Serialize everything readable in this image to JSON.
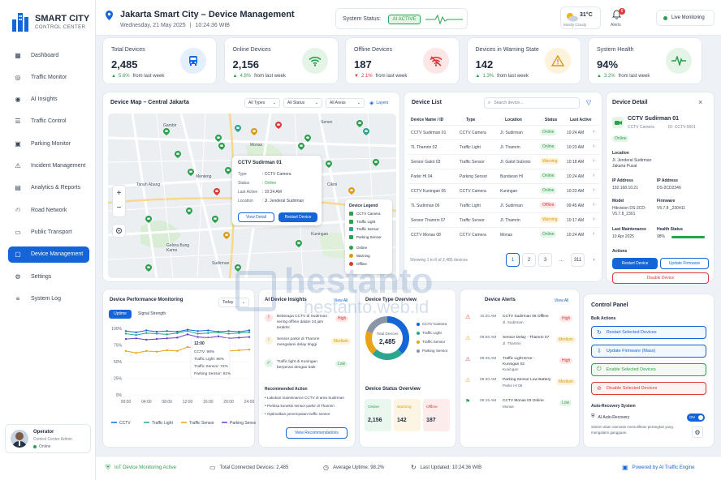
{
  "brand": {
    "title": "SMART CITY",
    "subtitle": "CONTROL CENTER"
  },
  "sidebar": {
    "items": [
      {
        "label": "Dashboard",
        "icon": "grid-icon"
      },
      {
        "label": "Traffic Monitor",
        "icon": "traffic-icon"
      },
      {
        "label": "AI Insights",
        "icon": "ai-icon"
      },
      {
        "label": "Traffic Control",
        "icon": "sliders-icon"
      },
      {
        "label": "Parking Monitor",
        "icon": "parking-icon"
      },
      {
        "label": "Incident Management",
        "icon": "alert-icon"
      },
      {
        "label": "Analytics & Reports",
        "icon": "chart-icon"
      },
      {
        "label": "Road Network",
        "icon": "road-icon"
      },
      {
        "label": "Public Transport",
        "icon": "bus-icon"
      },
      {
        "label": "Device Management",
        "icon": "device-icon"
      },
      {
        "label": "Settings",
        "icon": "gear-icon"
      },
      {
        "label": "System Log",
        "icon": "log-icon"
      }
    ],
    "active_index": 9,
    "user": {
      "name": "Operator",
      "role": "Control Center Admin",
      "status": "Online"
    }
  },
  "header": {
    "title": "Jakarta Smart City – Device Management",
    "date": "Wednesday, 21 May 2025",
    "time": "10:24:36 WIB",
    "system_status_label": "System Status:",
    "system_status_value": "AI ACTIVE",
    "weather_temp": "31°C",
    "weather_desc": "Mostly Cloudy",
    "alerts_label": "Alerts",
    "alerts_count": "8",
    "live_label": "Live Monitoring"
  },
  "kpis": [
    {
      "label": "Total Devices",
      "value": "2,485",
      "change": "5.6%",
      "trend": "up",
      "suffix": "from last week",
      "icon": "bus-icon",
      "color": "#1565d8",
      "bg": "#e4eefc"
    },
    {
      "label": "Online Devices",
      "value": "2,156",
      "change": "4.8%",
      "trend": "up",
      "suffix": "from last week",
      "icon": "wifi-icon",
      "color": "#2e9e4f",
      "bg": "#e4f5e8"
    },
    {
      "label": "Offline Devices",
      "value": "187",
      "change": "2.1%",
      "trend": "down",
      "suffix": "from last week",
      "icon": "wifi-off-icon",
      "color": "#d93a3a",
      "bg": "#fde6e6"
    },
    {
      "label": "Devices in Warning State",
      "value": "142",
      "change": "1.3%",
      "trend": "up",
      "suffix": "from last week",
      "icon": "warning-icon",
      "color": "#d99a1a",
      "bg": "#fdf2dc"
    },
    {
      "label": "System Health",
      "value": "94%",
      "change": "3.2%",
      "trend": "up",
      "suffix": "from last week",
      "icon": "pulse-icon",
      "color": "#2e9e4f",
      "bg": "#e4f5e8"
    }
  ],
  "map": {
    "title": "Device Map – Central Jakarta",
    "filters": [
      "All Types",
      "All Status",
      "All Areas"
    ],
    "layers_label": "Layers",
    "labels": [
      "Gambir",
      "Senen",
      "Monas",
      "Tanah Abang",
      "Menteng",
      "Cikini",
      "Gelora Bung Karno",
      "Sudirman",
      "Kuningan"
    ],
    "popup": {
      "title": "CCTV Sudirman 01",
      "rows": [
        [
          "Type",
          ": CCTV Camera"
        ],
        [
          "Status",
          ": Online"
        ],
        [
          "Last Active",
          ": 10:24 AM"
        ],
        [
          "Location",
          ": Jl. Jenderal Sudirman"
        ]
      ],
      "view_label": "View Detail",
      "restart_label": "Restart Device"
    },
    "legend": {
      "title": "Device Legend",
      "types": [
        "CCTV Camera",
        "Traffic Light",
        "Traffic Sensor",
        "Parking Sensor"
      ],
      "statuses": [
        "Online",
        "Warning",
        "Offline"
      ]
    }
  },
  "device_list": {
    "title": "Device List",
    "search_placeholder": "Search device...",
    "columns": [
      "Device Name / ID",
      "Type",
      "Location",
      "Status",
      "Last Active"
    ],
    "rows": [
      [
        "CCTV Sudirman 01",
        "CCTV Camera",
        "Jl. Sudirman",
        "Online",
        "10:24 AM"
      ],
      [
        "TL Thamrin 02",
        "Traffic Light",
        "Jl. Thamrin",
        "Online",
        "10:23 AM"
      ],
      [
        "Sensor Gatot 03",
        "Traffic Sensor",
        "Jl. Gatot Subroto",
        "Warning",
        "10:18 AM"
      ],
      [
        "Parkir HI 04",
        "Parking Sensor",
        "Bundaran HI",
        "Online",
        "10:24 AM"
      ],
      [
        "CCTV Kuningan 05",
        "CCTV Camera",
        "Kuningan",
        "Online",
        "10:23 AM"
      ],
      [
        "TL Sudirman 06",
        "Traffic Light",
        "Jl. Sudirman",
        "Offline",
        "09:45 AM"
      ],
      [
        "Sensor Thamrin 07",
        "Traffic Sensor",
        "Jl. Thamrin",
        "Warning",
        "10:17 AM"
      ],
      [
        "CCTV Monas 08",
        "CCTV Camera",
        "Monas",
        "Online",
        "10:24 AM"
      ]
    ],
    "footer": "Showing 1 to 8 of 2,485 devices",
    "pages": [
      "1",
      "2",
      "3",
      "...",
      "311"
    ]
  },
  "device_detail": {
    "title": "Device Detail",
    "name": "CCTV Sudirman 01",
    "type": "CCTV Camera",
    "id": "ID: CCTV-0001",
    "status": "Online",
    "location_label": "Location",
    "location": "Jl. Jenderal Sudirman Jakarta Pusat",
    "ip_label": "IP Address",
    "ip": "192.168.10.21",
    "mac_label": "IP Address",
    "mac": "DS-2CD2346",
    "model_label": "Model",
    "model": "Hikvision DS-2CD-V5.7.8_2301",
    "fw_label": "Firmware",
    "fw": "V5.7.8 _230411",
    "maint_label": "Last Maintenance",
    "maint": "10 Apr 2025",
    "health_label": "Health Status",
    "health": "98%",
    "health_pct": 98,
    "actions_label": "Actions",
    "restart": "Restart Device",
    "update": "Update Firmware",
    "disable": "Disable Device"
  },
  "perf": {
    "title": "Device Performance Monitoring",
    "range": "Today",
    "tabs": [
      "Uptime",
      "Signal Strength"
    ],
    "tooltip": {
      "time": "12:00",
      "lines": [
        "CCTV: 98%",
        "Traffic Light: 96%",
        "Traffic Sensor: 72%",
        "Parking Sensor: 91%"
      ]
    }
  },
  "chart_data": {
    "type": "line",
    "x": [
      "00:00",
      "02:00",
      "04:00",
      "06:00",
      "08:00",
      "10:00",
      "12:00",
      "14:00",
      "16:00",
      "18:00",
      "20:00",
      "22:00",
      "24:00"
    ],
    "yticks": [
      "0%",
      "25%",
      "50%",
      "75%",
      "100%"
    ],
    "ylim": [
      0,
      100
    ],
    "series": [
      {
        "name": "CCTV",
        "color": "#1565d8",
        "values": [
          96,
          94,
          97,
          95,
          96,
          95,
          98,
          96,
          97,
          95,
          96,
          95,
          97
        ]
      },
      {
        "name": "Traffic Light",
        "color": "#2ba58f",
        "values": [
          92,
          90,
          93,
          92,
          91,
          93,
          96,
          92,
          93,
          94,
          92,
          93,
          94
        ]
      },
      {
        "name": "Traffic Sensor",
        "color": "#e8a317",
        "values": [
          66,
          63,
          66,
          65,
          67,
          66,
          72,
          70,
          67,
          69,
          66,
          67,
          68
        ]
      },
      {
        "name": "Parking Sensor",
        "color": "#6a3fc4",
        "values": [
          84,
          85,
          83,
          84,
          85,
          86,
          91,
          87,
          86,
          88,
          85,
          86,
          87
        ]
      }
    ]
  },
  "ai_insights": {
    "title": "AI Device Insights",
    "view_all": "View All",
    "items": [
      {
        "text": "Beberapa CCTV di Sudirman sering offline dalam 24 jam terakhir",
        "level": "High",
        "icon": "alert-icon"
      },
      {
        "text": "Sensor parkir di Thamrin mengalami delay tinggi",
        "level": "Medium",
        "icon": "warning-icon"
      },
      {
        "text": "Traffic light di Kuningan berperasi dengan baik",
        "level": "Low",
        "icon": "check-icon"
      }
    ],
    "rec_title": "Recommended Action",
    "recs": [
      "Lakukan maintenance CCTV di area Sudirman",
      "Periksa koneksi sensor parkir di Thamrin",
      "Optimalkan penempatan traffic sensor"
    ],
    "button": "View Recommendations"
  },
  "type_overview": {
    "title": "Device Type Overview",
    "center_label": "Total Devices",
    "center_value": "2,485",
    "items": [
      {
        "name": "CCTV Camera",
        "color": "#1565d8",
        "share": 0.38
      },
      {
        "name": "Traffic Light",
        "color": "#2ba58f",
        "share": 0.24
      },
      {
        "name": "Traffic Sensor",
        "color": "#e8a317",
        "share": 0.18
      },
      {
        "name": "Parking Sensor",
        "color": "#8a96a8",
        "share": 0.2
      }
    ]
  },
  "status_overview": {
    "title": "Device Status Overview",
    "items": [
      {
        "label": "Online",
        "value": "2,156",
        "cls": "on"
      },
      {
        "label": "Warning",
        "value": "142",
        "cls": "warn"
      },
      {
        "label": "Offline",
        "value": "187",
        "cls": "off"
      }
    ]
  },
  "alerts": {
    "title": "Device Alerts",
    "view_all": "View All",
    "items": [
      {
        "time": "10:20 AM",
        "title": "CCTV Sudirman 06 Offline",
        "sub": "Jl. Sudirman",
        "level": "High",
        "color": "#d93a3a"
      },
      {
        "time": "09:58 AM",
        "title": "Sensor Delay - Thamrin 07",
        "sub": "Jl. Thamrin",
        "level": "Medium",
        "color": "#d99a1a"
      },
      {
        "time": "09:45 AM",
        "title": "Traffic Light Error - Kuningan 02",
        "sub": "Kuningan",
        "level": "High",
        "color": "#d93a3a"
      },
      {
        "time": "09:30 AM",
        "title": "Parking Sensor Low Battery",
        "sub": "Parkir HI 05",
        "level": "Medium",
        "color": "#d99a1a"
      },
      {
        "time": "09:15 AM",
        "title": "CCTV Monas 03 Online",
        "sub": "Monas",
        "level": "Low",
        "color": "#2e9e4f"
      }
    ]
  },
  "control": {
    "title": "Control Panel",
    "bulk_label": "Bulk Actions",
    "buttons": [
      {
        "label": "Restart Selected Devices",
        "cls": "blue"
      },
      {
        "label": "Update Firmware (Mass)",
        "cls": "blue"
      },
      {
        "label": "Enable Selected Devices",
        "cls": "green"
      },
      {
        "label": "Disable Selected Devices",
        "cls": "red"
      }
    ],
    "auto_title": "Auto-Recovery System",
    "auto_label": "AI Auto-Recovery",
    "toggle": "ON",
    "auto_desc": "Sistem akan otomatis memulihkan perangkat yang mengalami gangguan."
  },
  "footer": {
    "items": [
      "IoT Device Monitoring Active",
      "Total Connected Devices: 2,485",
      "Average Uptime: 98.2%",
      "Last Updated: 10:24:36 WIB"
    ],
    "powered": "Powered by AI Traffic Engine"
  },
  "watermark": {
    "line1": "hestanto",
    "line2": "hestanto.web.id"
  }
}
